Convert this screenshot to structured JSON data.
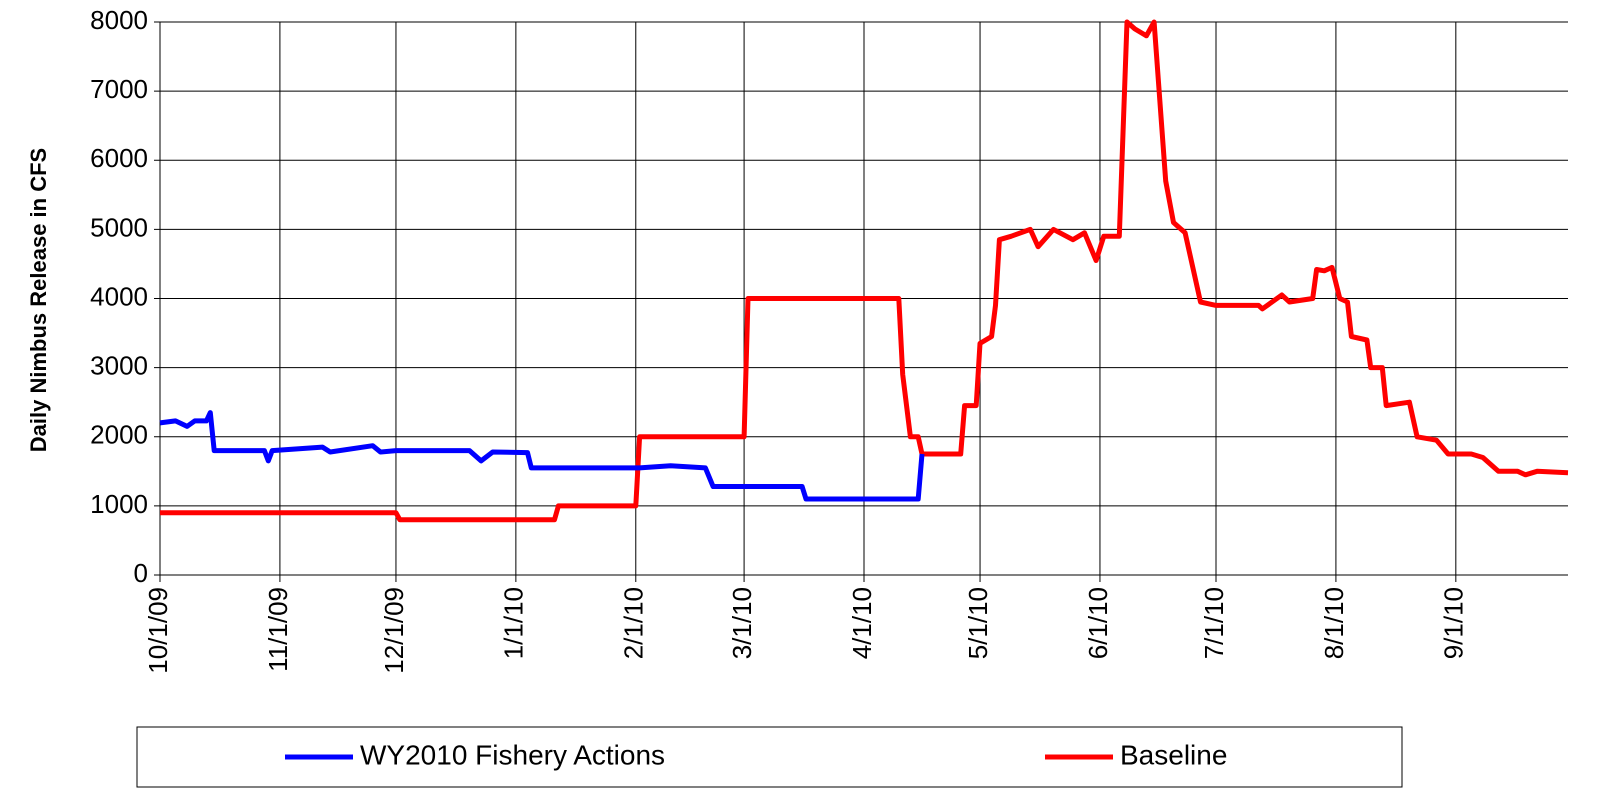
{
  "chart_data": {
    "type": "line",
    "ylabel": "Daily Nimbus Release in CFS",
    "x": [
      "2009-10-01",
      "2009-10-05",
      "2009-10-08",
      "2009-10-10",
      "2009-10-13",
      "2009-10-14",
      "2009-10-15",
      "2009-10-28",
      "2009-10-29",
      "2009-10-30",
      "2009-11-12",
      "2009-11-14",
      "2009-11-25",
      "2009-11-27",
      "2009-12-01",
      "2009-12-02",
      "2009-12-20",
      "2009-12-23",
      "2009-12-26",
      "2010-01-04",
      "2010-01-05",
      "2010-01-11",
      "2010-01-12",
      "2010-02-01",
      "2010-02-02",
      "2010-02-10",
      "2010-02-19",
      "2010-02-21",
      "2010-03-01",
      "2010-03-02",
      "2010-03-16",
      "2010-03-17",
      "2010-04-10",
      "2010-04-11",
      "2010-04-13",
      "2010-04-15",
      "2010-04-16",
      "2010-04-26",
      "2010-04-27",
      "2010-04-30",
      "2010-05-01",
      "2010-05-04",
      "2010-05-05",
      "2010-05-06",
      "2010-05-09",
      "2010-05-14",
      "2010-05-16",
      "2010-05-20",
      "2010-05-25",
      "2010-05-28",
      "2010-05-31",
      "2010-06-02",
      "2010-06-06",
      "2010-06-08",
      "2010-06-10",
      "2010-06-13",
      "2010-06-15",
      "2010-06-18",
      "2010-06-20",
      "2010-06-23",
      "2010-06-27",
      "2010-07-01",
      "2010-07-12",
      "2010-07-13",
      "2010-07-18",
      "2010-07-20",
      "2010-07-26",
      "2010-07-27",
      "2010-07-29",
      "2010-07-31",
      "2010-08-02",
      "2010-08-04",
      "2010-08-05",
      "2010-08-09",
      "2010-08-10",
      "2010-08-13",
      "2010-08-14",
      "2010-08-20",
      "2010-08-22",
      "2010-08-27",
      "2010-08-30",
      "2010-09-05",
      "2010-09-08",
      "2010-09-12",
      "2010-09-17",
      "2010-09-19",
      "2010-09-22",
      "2010-09-30"
    ],
    "series": [
      {
        "name": "WY2010 Fishery Actions",
        "color": "#0000ff",
        "values": [
          2200,
          2230,
          2150,
          2230,
          2230,
          2350,
          1800,
          1800,
          1650,
          1800,
          1850,
          1780,
          1870,
          1780,
          1800,
          1800,
          1800,
          1650,
          1780,
          1770,
          1550,
          1550,
          1550,
          1550,
          1550,
          1580,
          1550,
          1280,
          1280,
          1280,
          1280,
          1100,
          1100,
          1100,
          1100,
          1100,
          1750,
          null,
          null,
          null,
          null,
          null,
          null,
          null,
          null,
          null,
          null,
          null,
          null,
          null,
          null,
          null,
          null,
          null,
          null,
          null,
          null,
          null,
          null,
          null,
          null,
          null,
          null,
          null,
          null,
          null,
          null,
          null,
          null,
          null,
          null,
          null,
          null,
          null,
          null,
          null,
          null,
          null,
          null,
          null,
          null,
          null,
          null,
          null,
          null,
          null,
          null,
          null
        ]
      },
      {
        "name": "Baseline",
        "color": "#ff0000",
        "values": [
          900,
          900,
          900,
          900,
          900,
          900,
          900,
          900,
          900,
          900,
          900,
          900,
          900,
          900,
          900,
          800,
          800,
          800,
          800,
          800,
          800,
          800,
          1000,
          1000,
          2000,
          2000,
          2000,
          2000,
          2000,
          4000,
          4000,
          4000,
          4000,
          2900,
          2000,
          2000,
          1750,
          1750,
          2450,
          2450,
          3350,
          3450,
          3900,
          4850,
          4900,
          5000,
          4750,
          5000,
          4850,
          4950,
          4550,
          4900,
          4900,
          8000,
          7900,
          7800,
          8000,
          5700,
          5100,
          4950,
          3950,
          3900,
          3900,
          3850,
          4050,
          3950,
          4000,
          4420,
          4400,
          4450,
          4000,
          3950,
          3450,
          3400,
          3000,
          3000,
          2450,
          2500,
          2000,
          1950,
          1750,
          1750,
          1700,
          1500,
          1500,
          1450,
          1500,
          1480
        ]
      }
    ],
    "xlim": [
      "2009-10-01",
      "2010-09-30"
    ],
    "xticks": [
      {
        "value": "2009-10-01",
        "label": "10/1/09"
      },
      {
        "value": "2009-11-01",
        "label": "11/1/09"
      },
      {
        "value": "2009-12-01",
        "label": "12/1/09"
      },
      {
        "value": "2010-01-01",
        "label": "1/1/10"
      },
      {
        "value": "2010-02-01",
        "label": "2/1/10"
      },
      {
        "value": "2010-03-01",
        "label": "3/1/10"
      },
      {
        "value": "2010-04-01",
        "label": "4/1/10"
      },
      {
        "value": "2010-05-01",
        "label": "5/1/10"
      },
      {
        "value": "2010-06-01",
        "label": "6/1/10"
      },
      {
        "value": "2010-07-01",
        "label": "7/1/10"
      },
      {
        "value": "2010-08-01",
        "label": "8/1/10"
      },
      {
        "value": "2010-09-01",
        "label": "9/1/10"
      }
    ],
    "ylim": [
      0,
      8000
    ],
    "yticks": [
      0,
      1000,
      2000,
      3000,
      4000,
      5000,
      6000,
      7000,
      8000
    ],
    "grid": true,
    "legend": "bottom"
  }
}
